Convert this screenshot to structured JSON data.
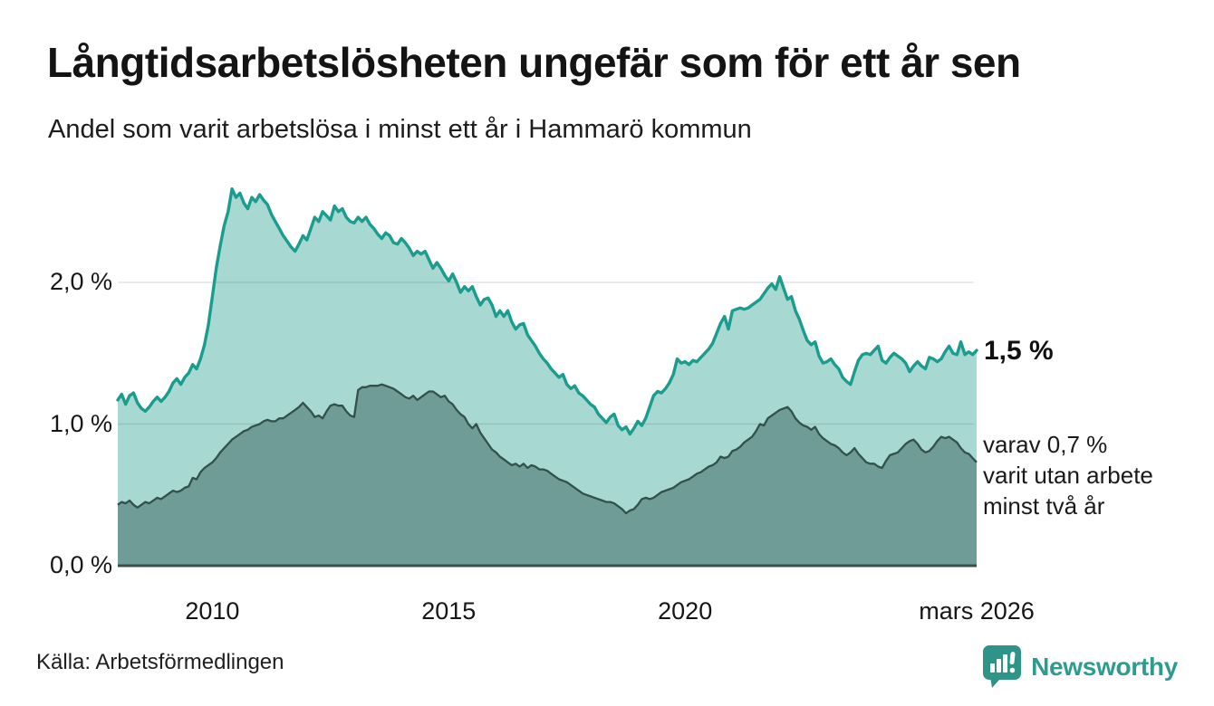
{
  "colors": {
    "accent_line": "#1A9C8E",
    "light_fill": "#A7D8D1",
    "dark_fill": "#6F9C97",
    "dark_line": "#33504B",
    "axis_line": "#3A4F4B",
    "gridline": "rgba(60,70,80,0.14)",
    "brand": "#2D9C8F",
    "brand_icon": "#2E9488"
  },
  "chart_data": {
    "type": "area",
    "title": "Långtidsarbetslösheten ungefär som för ett år sen",
    "subtitle": "Andel som varit arbetslösa i minst ett år i Hammarö kommun",
    "source": "Källa: Arbetsförmedlingen",
    "brand": "Newsworthy",
    "grid": true,
    "legend_position": "none",
    "x_axis": {
      "range": [
        2008.0,
        2026.1667
      ],
      "ticks": [
        {
          "label": "2010",
          "year": 2010
        },
        {
          "label": "2015",
          "year": 2015
        },
        {
          "label": "2020",
          "year": 2020
        },
        {
          "label": "mars 2026",
          "year": 2026.1667
        }
      ]
    },
    "y_axis": {
      "range": [
        0,
        2.72
      ],
      "unit": "%",
      "ticks": [
        {
          "label": "0,0 %",
          "value": 0
        },
        {
          "label": "1,0 %",
          "value": 1
        },
        {
          "label": "2,0 %",
          "value": 2
        }
      ]
    },
    "annotations": {
      "end_value_label": "1,5 %",
      "note": "varav 0,7 %\nvarit utan arbete\nminst två år"
    },
    "x_start": 2008.0,
    "x_step": 0.0833333,
    "series": [
      {
        "name": "Arbetslösa minst ett år",
        "end_value_pct": 1.5,
        "values": [
          1.17,
          1.21,
          1.14,
          1.2,
          1.22,
          1.15,
          1.11,
          1.09,
          1.12,
          1.16,
          1.19,
          1.16,
          1.19,
          1.23,
          1.29,
          1.32,
          1.28,
          1.33,
          1.36,
          1.42,
          1.39,
          1.46,
          1.56,
          1.7,
          1.9,
          2.1,
          2.26,
          2.4,
          2.5,
          2.66,
          2.6,
          2.63,
          2.56,
          2.52,
          2.6,
          2.57,
          2.62,
          2.58,
          2.55,
          2.48,
          2.43,
          2.38,
          2.33,
          2.29,
          2.25,
          2.22,
          2.27,
          2.33,
          2.3,
          2.38,
          2.46,
          2.43,
          2.5,
          2.47,
          2.44,
          2.54,
          2.5,
          2.52,
          2.46,
          2.43,
          2.42,
          2.46,
          2.43,
          2.46,
          2.41,
          2.38,
          2.34,
          2.31,
          2.35,
          2.33,
          2.28,
          2.27,
          2.31,
          2.28,
          2.24,
          2.19,
          2.22,
          2.2,
          2.22,
          2.16,
          2.1,
          2.14,
          2.1,
          2.05,
          2.01,
          2.06,
          2.0,
          1.93,
          1.97,
          1.94,
          1.97,
          1.9,
          1.84,
          1.88,
          1.89,
          1.84,
          1.76,
          1.8,
          1.76,
          1.8,
          1.72,
          1.67,
          1.7,
          1.71,
          1.63,
          1.59,
          1.55,
          1.5,
          1.46,
          1.43,
          1.39,
          1.36,
          1.33,
          1.35,
          1.28,
          1.25,
          1.27,
          1.22,
          1.2,
          1.17,
          1.14,
          1.12,
          1.07,
          1.04,
          1.01,
          1.05,
          1.07,
          0.99,
          0.96,
          0.98,
          0.93,
          0.97,
          1.02,
          0.99,
          1.04,
          1.12,
          1.2,
          1.23,
          1.22,
          1.25,
          1.29,
          1.35,
          1.46,
          1.43,
          1.44,
          1.42,
          1.45,
          1.44,
          1.47,
          1.5,
          1.53,
          1.57,
          1.64,
          1.71,
          1.76,
          1.67,
          1.8,
          1.81,
          1.82,
          1.81,
          1.82,
          1.84,
          1.86,
          1.88,
          1.92,
          1.96,
          1.99,
          1.95,
          2.04,
          1.96,
          1.88,
          1.9,
          1.8,
          1.74,
          1.66,
          1.59,
          1.56,
          1.58,
          1.48,
          1.43,
          1.44,
          1.46,
          1.42,
          1.39,
          1.33,
          1.3,
          1.28,
          1.37,
          1.45,
          1.49,
          1.5,
          1.49,
          1.52,
          1.55,
          1.45,
          1.43,
          1.47,
          1.5,
          1.48,
          1.46,
          1.43,
          1.37,
          1.41,
          1.44,
          1.41,
          1.39,
          1.47,
          1.46,
          1.44,
          1.46,
          1.51,
          1.55,
          1.5,
          1.49,
          1.58,
          1.49,
          1.51,
          1.49,
          1.52
        ]
      },
      {
        "name": "varav arbetslösa minst två år",
        "end_value_pct": 0.7,
        "values": [
          0.43,
          0.45,
          0.44,
          0.46,
          0.43,
          0.41,
          0.43,
          0.45,
          0.44,
          0.46,
          0.48,
          0.47,
          0.49,
          0.51,
          0.53,
          0.52,
          0.53,
          0.55,
          0.56,
          0.62,
          0.61,
          0.66,
          0.69,
          0.71,
          0.73,
          0.76,
          0.8,
          0.83,
          0.86,
          0.89,
          0.91,
          0.93,
          0.95,
          0.96,
          0.98,
          0.99,
          1.0,
          1.02,
          1.03,
          1.02,
          1.02,
          1.04,
          1.04,
          1.06,
          1.08,
          1.1,
          1.12,
          1.15,
          1.12,
          1.09,
          1.05,
          1.06,
          1.04,
          1.09,
          1.13,
          1.14,
          1.13,
          1.13,
          1.09,
          1.06,
          1.05,
          1.24,
          1.26,
          1.26,
          1.27,
          1.27,
          1.27,
          1.28,
          1.27,
          1.26,
          1.25,
          1.23,
          1.21,
          1.19,
          1.18,
          1.2,
          1.17,
          1.19,
          1.21,
          1.23,
          1.23,
          1.21,
          1.19,
          1.2,
          1.16,
          1.14,
          1.1,
          1.07,
          1.05,
          1.0,
          0.97,
          1.0,
          0.94,
          0.9,
          0.86,
          0.82,
          0.8,
          0.77,
          0.75,
          0.73,
          0.71,
          0.72,
          0.7,
          0.72,
          0.69,
          0.71,
          0.7,
          0.68,
          0.68,
          0.67,
          0.65,
          0.63,
          0.61,
          0.6,
          0.59,
          0.57,
          0.55,
          0.53,
          0.51,
          0.5,
          0.49,
          0.48,
          0.47,
          0.46,
          0.45,
          0.45,
          0.44,
          0.42,
          0.4,
          0.37,
          0.39,
          0.4,
          0.43,
          0.47,
          0.48,
          0.47,
          0.48,
          0.5,
          0.52,
          0.53,
          0.54,
          0.55,
          0.57,
          0.59,
          0.6,
          0.61,
          0.63,
          0.65,
          0.66,
          0.68,
          0.7,
          0.71,
          0.73,
          0.77,
          0.76,
          0.77,
          0.81,
          0.82,
          0.84,
          0.87,
          0.89,
          0.91,
          0.95,
          1.0,
          0.99,
          1.04,
          1.06,
          1.08,
          1.1,
          1.11,
          1.12,
          1.09,
          1.04,
          1.01,
          0.99,
          0.98,
          0.96,
          0.98,
          0.93,
          0.9,
          0.88,
          0.86,
          0.85,
          0.83,
          0.8,
          0.78,
          0.8,
          0.83,
          0.79,
          0.76,
          0.73,
          0.72,
          0.72,
          0.7,
          0.69,
          0.74,
          0.78,
          0.79,
          0.8,
          0.83,
          0.86,
          0.88,
          0.89,
          0.86,
          0.82,
          0.8,
          0.81,
          0.84,
          0.88,
          0.91,
          0.9,
          0.91,
          0.89,
          0.87,
          0.83,
          0.8,
          0.79,
          0.76,
          0.73
        ]
      }
    ]
  }
}
